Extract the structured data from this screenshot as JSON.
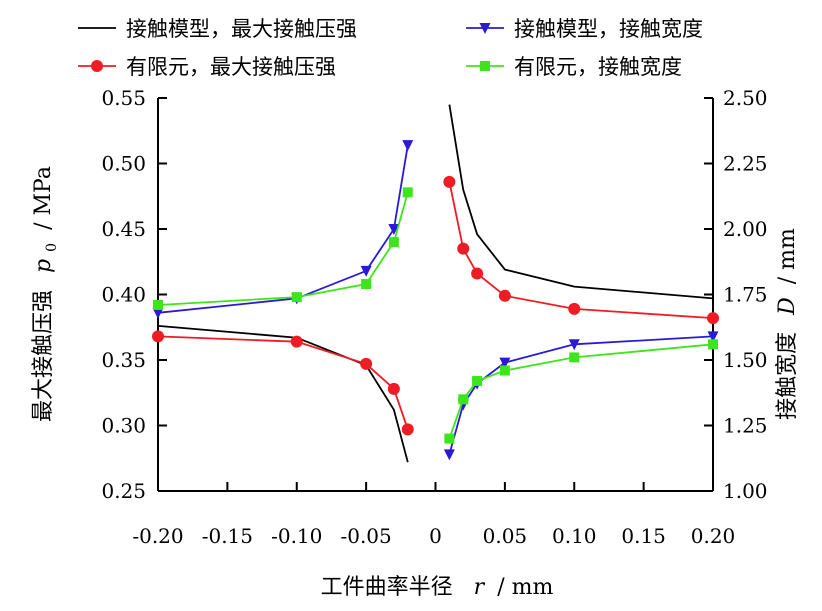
{
  "chart_data": {
    "type": "line",
    "title": "",
    "xlabel": "工件曲率半径",
    "xlabel_symbol": "r",
    "xlabel_unit": "/ mm",
    "ylabel_left": "最大接触压强",
    "ylabel_left_symbol": "p",
    "ylabel_left_subscript": "0",
    "ylabel_left_unit": "/ MPa",
    "ylabel_right": "接触宽度",
    "ylabel_right_symbol": "D",
    "ylabel_right_unit": "/ mm",
    "xlim": [
      -0.2,
      0.2
    ],
    "ylim_left": [
      0.25,
      0.55
    ],
    "ylim_right": [
      1.0,
      2.5
    ],
    "x_ticks": [
      -0.2,
      -0.15,
      -0.1,
      -0.05,
      0,
      0.05,
      0.1,
      0.15,
      0.2
    ],
    "x_tick_labels": [
      "-0.20",
      "-0.15",
      "-0.10",
      "-0.05",
      "0",
      "0.05",
      "0.10",
      "0.15",
      "0.20"
    ],
    "y_left_ticks": [
      0.25,
      0.3,
      0.35,
      0.4,
      0.45,
      0.5,
      0.55
    ],
    "y_left_tick_labels": [
      "0.25",
      "0.30",
      "0.35",
      "0.40",
      "0.45",
      "0.50",
      "0.55"
    ],
    "y_right_ticks": [
      1.0,
      1.25,
      1.5,
      1.75,
      2.0,
      2.25,
      2.5
    ],
    "y_right_tick_labels": [
      "1.00",
      "1.25",
      "1.50",
      "1.75",
      "2.00",
      "2.25",
      "2.50"
    ],
    "grid": false,
    "legend_position": "top",
    "series": [
      {
        "name": "接触模型，最大接触压强",
        "axis": "left",
        "color": "#000000",
        "marker": "none",
        "segments": [
          [
            [
              -0.2,
              0.376
            ],
            [
              -0.1,
              0.367
            ],
            [
              -0.05,
              0.346
            ],
            [
              -0.03,
              0.312
            ],
            [
              -0.02,
              0.272
            ]
          ],
          [
            [
              0.01,
              0.545
            ],
            [
              0.02,
              0.48
            ],
            [
              0.03,
              0.446
            ],
            [
              0.05,
              0.419
            ],
            [
              0.1,
              0.406
            ],
            [
              0.2,
              0.397
            ]
          ]
        ]
      },
      {
        "name": "有限元，最大接触压强",
        "axis": "left",
        "color": "#ee1c24",
        "marker": "circle",
        "segments": [
          [
            [
              -0.2,
              0.368
            ],
            [
              -0.1,
              0.364
            ],
            [
              -0.05,
              0.347
            ],
            [
              -0.03,
              0.328
            ],
            [
              -0.02,
              0.297
            ]
          ],
          [
            [
              0.01,
              0.486
            ],
            [
              0.02,
              0.435
            ],
            [
              0.03,
              0.416
            ],
            [
              0.05,
              0.399
            ],
            [
              0.1,
              0.389
            ],
            [
              0.2,
              0.382
            ]
          ]
        ]
      },
      {
        "name": "接触模型，接触宽度",
        "axis": "right",
        "color": "#2a1ad6",
        "marker": "triangle-down",
        "segments": [
          [
            [
              -0.2,
              1.68
            ],
            [
              -0.1,
              1.735
            ],
            [
              -0.05,
              1.84
            ],
            [
              -0.03,
              2.0
            ],
            [
              -0.02,
              2.32
            ]
          ],
          [
            [
              0.01,
              1.14
            ],
            [
              0.02,
              1.33
            ],
            [
              0.03,
              1.41
            ],
            [
              0.05,
              1.49
            ],
            [
              0.1,
              1.56
            ],
            [
              0.2,
              1.59
            ]
          ]
        ]
      },
      {
        "name": "有限元，接触宽度",
        "axis": "right",
        "color": "#3de61a",
        "marker": "square",
        "segments": [
          [
            [
              -0.2,
              1.71
            ],
            [
              -0.1,
              1.74
            ],
            [
              -0.05,
              1.79
            ],
            [
              -0.03,
              1.95
            ],
            [
              -0.02,
              2.14
            ]
          ],
          [
            [
              0.01,
              1.2
            ],
            [
              0.02,
              1.35
            ],
            [
              0.03,
              1.42
            ],
            [
              0.05,
              1.46
            ],
            [
              0.1,
              1.51
            ],
            [
              0.2,
              1.56
            ]
          ]
        ]
      }
    ]
  }
}
